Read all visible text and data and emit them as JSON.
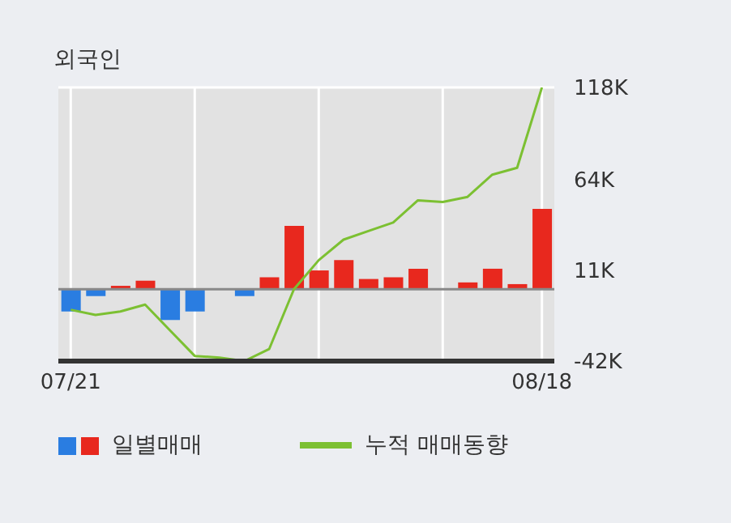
{
  "chart_data": {
    "type": "bar",
    "title": "외국인",
    "categories": [
      "07/21",
      null,
      null,
      null,
      null,
      null,
      null,
      null,
      null,
      null,
      null,
      null,
      null,
      null,
      null,
      null,
      null,
      null,
      null,
      "08/18"
    ],
    "series": [
      {
        "name": "일별매매",
        "colors": [
          "#2a7de1",
          "#2a7de1",
          "#e8281e",
          "#e8281e",
          "#2a7de1",
          "#2a7de1",
          "#e8281e",
          "#2a7de1",
          "#e8281e",
          "#e8281e",
          "#e8281e",
          "#e8281e",
          "#e8281e",
          "#e8281e",
          "#e8281e",
          "#e8281e",
          "#e8281e",
          "#e8281e",
          "#e8281e",
          "#e8281e"
        ],
        "values": [
          -13,
          -4,
          2,
          5,
          -18,
          -13,
          0,
          -4,
          7,
          37,
          11,
          17,
          6,
          7,
          12,
          0,
          4,
          12,
          3,
          47
        ]
      },
      {
        "name": "누적 매매동향",
        "type": "line",
        "color": "#7cc032",
        "values": [
          -12,
          -15,
          -13,
          -9,
          -24,
          -39,
          -40,
          -42,
          -35,
          0,
          17,
          29,
          34,
          39,
          52,
          51,
          54,
          67,
          71,
          118
        ]
      }
    ],
    "ylim": [
      -42,
      118
    ],
    "yticks": [
      {
        "value": -42,
        "label": "-42K"
      },
      {
        "value": 11,
        "label": "11K"
      },
      {
        "value": 64,
        "label": "64K"
      },
      {
        "value": 118,
        "label": "118K"
      }
    ],
    "ref_lines": [
      {
        "axis": "y",
        "value": 0,
        "color": "#888888"
      }
    ],
    "grid": true,
    "legend": "bottom",
    "marker": "none",
    "line_style": "solid"
  }
}
